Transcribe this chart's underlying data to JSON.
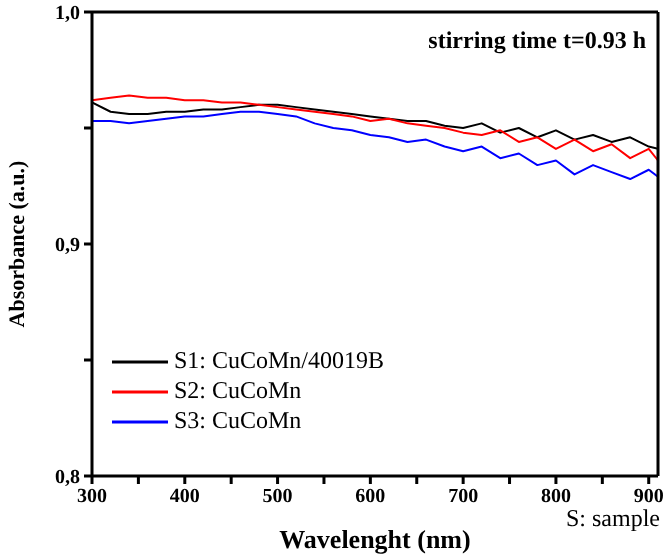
{
  "chart_data": {
    "type": "line",
    "xlabel": "Wavelenght (nm)",
    "ylabel": "Absorbance (a.u.)",
    "annotations": [
      "stirring time t=0.93 h",
      "S: sample"
    ],
    "x": [
      300,
      320,
      340,
      360,
      380,
      400,
      420,
      440,
      460,
      480,
      500,
      520,
      540,
      560,
      580,
      600,
      620,
      640,
      660,
      680,
      700,
      720,
      740,
      760,
      780,
      800,
      820,
      840,
      860,
      880,
      900,
      910
    ],
    "series": [
      {
        "name": "S1: CuCoMn/40019B",
        "color": "#000000",
        "values": [
          0.961,
          0.957,
          0.956,
          0.956,
          0.957,
          0.957,
          0.958,
          0.958,
          0.959,
          0.96,
          0.96,
          0.959,
          0.958,
          0.957,
          0.956,
          0.955,
          0.954,
          0.953,
          0.953,
          0.951,
          0.95,
          0.952,
          0.948,
          0.95,
          0.946,
          0.949,
          0.945,
          0.947,
          0.944,
          0.946,
          0.942,
          0.941
        ]
      },
      {
        "name": "S2: CuCoMn",
        "color": "#ff0000",
        "values": [
          0.962,
          0.963,
          0.964,
          0.963,
          0.963,
          0.962,
          0.962,
          0.961,
          0.961,
          0.96,
          0.959,
          0.958,
          0.957,
          0.956,
          0.955,
          0.953,
          0.954,
          0.952,
          0.951,
          0.95,
          0.948,
          0.947,
          0.949,
          0.944,
          0.946,
          0.941,
          0.945,
          0.94,
          0.943,
          0.937,
          0.941,
          0.936
        ]
      },
      {
        "name": "S3: CuCoMn",
        "color": "#0000ff",
        "values": [
          0.953,
          0.953,
          0.952,
          0.953,
          0.954,
          0.955,
          0.955,
          0.956,
          0.957,
          0.957,
          0.956,
          0.955,
          0.952,
          0.95,
          0.949,
          0.947,
          0.946,
          0.944,
          0.945,
          0.942,
          0.94,
          0.942,
          0.937,
          0.939,
          0.934,
          0.936,
          0.93,
          0.934,
          0.931,
          0.928,
          0.932,
          0.929
        ]
      }
    ],
    "xlim": [
      300,
      910
    ],
    "xticks": [
      300,
      {
        "value": 350,
        "label": null
      },
      400,
      {
        "value": 450,
        "label": null
      },
      500,
      {
        "value": 550,
        "label": null
      },
      600,
      {
        "value": 650,
        "label": null
      },
      700,
      {
        "value": 750,
        "label": null
      },
      800,
      {
        "value": 850,
        "label": null
      },
      900
    ],
    "ylim": [
      0.8,
      1.0
    ],
    "yticks": [
      {
        "value": 0.8,
        "label": "0,8"
      },
      {
        "value": 0.85,
        "label": null
      },
      {
        "value": 0.9,
        "label": "0,9"
      },
      {
        "value": 0.95,
        "label": null
      },
      {
        "value": 1.0,
        "label": "1,0"
      }
    ],
    "grid": false,
    "legend": "bottom left"
  }
}
